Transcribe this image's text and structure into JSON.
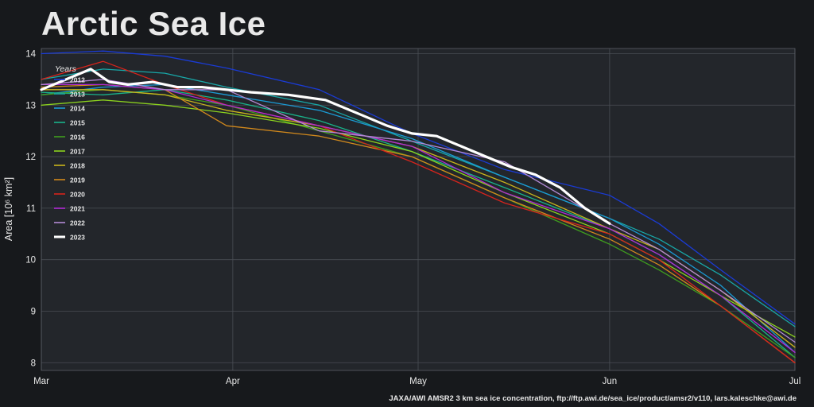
{
  "chart_data": {
    "type": "line",
    "title": "Arctic Sea Ice",
    "xlabel": "",
    "ylabel": "Area [10⁶ km²]",
    "x_ticks": [
      "Mar",
      "Apr",
      "May",
      "Jun",
      "Jul"
    ],
    "x_tick_days": [
      0,
      31,
      61,
      92,
      122
    ],
    "ylim": [
      7.85,
      14.1
    ],
    "y_ticks": [
      8,
      9,
      10,
      11,
      12,
      13,
      14
    ],
    "grid": true,
    "legend_title": "Years",
    "legend_position": "top-left",
    "series": [
      {
        "name": "2012",
        "color": "#1a3bd6",
        "width": 1.3,
        "x": [
          0,
          10,
          20,
          30,
          45,
          60,
          75,
          92,
          100,
          110,
          122
        ],
        "y": [
          14.0,
          14.05,
          13.95,
          13.72,
          13.3,
          12.45,
          11.75,
          11.25,
          10.7,
          9.8,
          8.75
        ]
      },
      {
        "name": "2013",
        "color": "#18a7a7",
        "width": 1.3,
        "x": [
          0,
          10,
          20,
          30,
          45,
          60,
          75,
          92,
          100,
          110,
          122
        ],
        "y": [
          13.5,
          13.7,
          13.62,
          13.35,
          13.0,
          12.3,
          11.6,
          10.8,
          10.4,
          9.7,
          8.7
        ]
      },
      {
        "name": "2014",
        "color": "#1b9ad4",
        "width": 1.3,
        "x": [
          0,
          10,
          20,
          30,
          45,
          60,
          75,
          92,
          100,
          110,
          122
        ],
        "y": [
          13.2,
          13.35,
          13.4,
          13.2,
          12.9,
          12.35,
          11.6,
          10.8,
          10.3,
          9.5,
          8.2
        ]
      },
      {
        "name": "2015",
        "color": "#19b38a",
        "width": 1.3,
        "x": [
          0,
          10,
          20,
          30,
          45,
          60,
          75,
          92,
          100,
          110,
          122
        ],
        "y": [
          13.25,
          13.2,
          13.3,
          13.1,
          12.7,
          12.1,
          11.4,
          10.6,
          10.1,
          9.3,
          8.1
        ]
      },
      {
        "name": "2016",
        "color": "#3f9d1e",
        "width": 1.3,
        "x": [
          0,
          10,
          20,
          30,
          45,
          60,
          75,
          92,
          100,
          110,
          122
        ],
        "y": [
          13.2,
          13.3,
          13.2,
          13.0,
          12.5,
          12.0,
          11.2,
          10.3,
          9.8,
          9.1,
          8.1
        ]
      },
      {
        "name": "2017",
        "color": "#8cd21e",
        "width": 1.3,
        "x": [
          0,
          10,
          20,
          30,
          45,
          60,
          75,
          92,
          100,
          110,
          122
        ],
        "y": [
          13.0,
          13.1,
          13.0,
          12.85,
          12.55,
          12.1,
          11.3,
          10.5,
          10.0,
          9.3,
          8.5
        ]
      },
      {
        "name": "2018",
        "color": "#c9b41c",
        "width": 1.3,
        "x": [
          0,
          10,
          20,
          30,
          45,
          60,
          75,
          92,
          100,
          110,
          122
        ],
        "y": [
          13.3,
          13.3,
          13.2,
          12.9,
          12.6,
          12.2,
          11.5,
          10.6,
          10.2,
          9.4,
          8.3
        ]
      },
      {
        "name": "2019",
        "color": "#d2891c",
        "width": 1.3,
        "x": [
          0,
          10,
          20,
          30,
          45,
          60,
          75,
          92,
          100,
          110,
          122
        ],
        "y": [
          13.35,
          13.4,
          13.3,
          12.6,
          12.4,
          12.0,
          11.2,
          10.4,
          9.9,
          9.1,
          8.0
        ]
      },
      {
        "name": "2020",
        "color": "#d6241c",
        "width": 1.3,
        "x": [
          0,
          10,
          20,
          30,
          45,
          60,
          75,
          92,
          100,
          110,
          122
        ],
        "y": [
          13.5,
          13.85,
          13.4,
          13.0,
          12.6,
          11.9,
          11.1,
          10.5,
          10.0,
          9.1,
          8.0
        ]
      },
      {
        "name": "2021",
        "color": "#b02ad6",
        "width": 1.3,
        "x": [
          0,
          10,
          20,
          30,
          45,
          60,
          75,
          92,
          100,
          110,
          122
        ],
        "y": [
          13.4,
          13.4,
          13.3,
          13.0,
          12.6,
          12.2,
          11.3,
          10.6,
          10.1,
          9.3,
          8.2
        ]
      },
      {
        "name": "2022",
        "color": "#b48ad6",
        "width": 1.3,
        "x": [
          0,
          10,
          20,
          30,
          45,
          60,
          75,
          92,
          100,
          110,
          122
        ],
        "y": [
          13.4,
          13.5,
          13.3,
          13.3,
          12.5,
          12.3,
          11.9,
          10.7,
          10.2,
          9.4,
          8.4
        ]
      },
      {
        "name": "2023",
        "color": "#ffffff",
        "width": 3.2,
        "x": [
          0,
          5,
          8,
          11,
          14,
          18,
          22,
          26,
          30,
          34,
          40,
          46,
          52,
          56,
          60,
          64,
          68,
          72,
          76,
          80,
          84,
          88,
          92
        ],
        "y": [
          13.3,
          13.55,
          13.7,
          13.45,
          13.4,
          13.45,
          13.35,
          13.35,
          13.3,
          13.25,
          13.2,
          13.1,
          12.8,
          12.6,
          12.45,
          12.4,
          12.2,
          12.0,
          11.8,
          11.65,
          11.4,
          11.0,
          10.7
        ]
      }
    ]
  },
  "footer": {
    "credit": "JAXA/AWI AMSR2 3 km sea ice concentration, ftp://ftp.awi.de/sea_ice/product/amsr2/v110, lars.kaleschke@awi.de"
  }
}
